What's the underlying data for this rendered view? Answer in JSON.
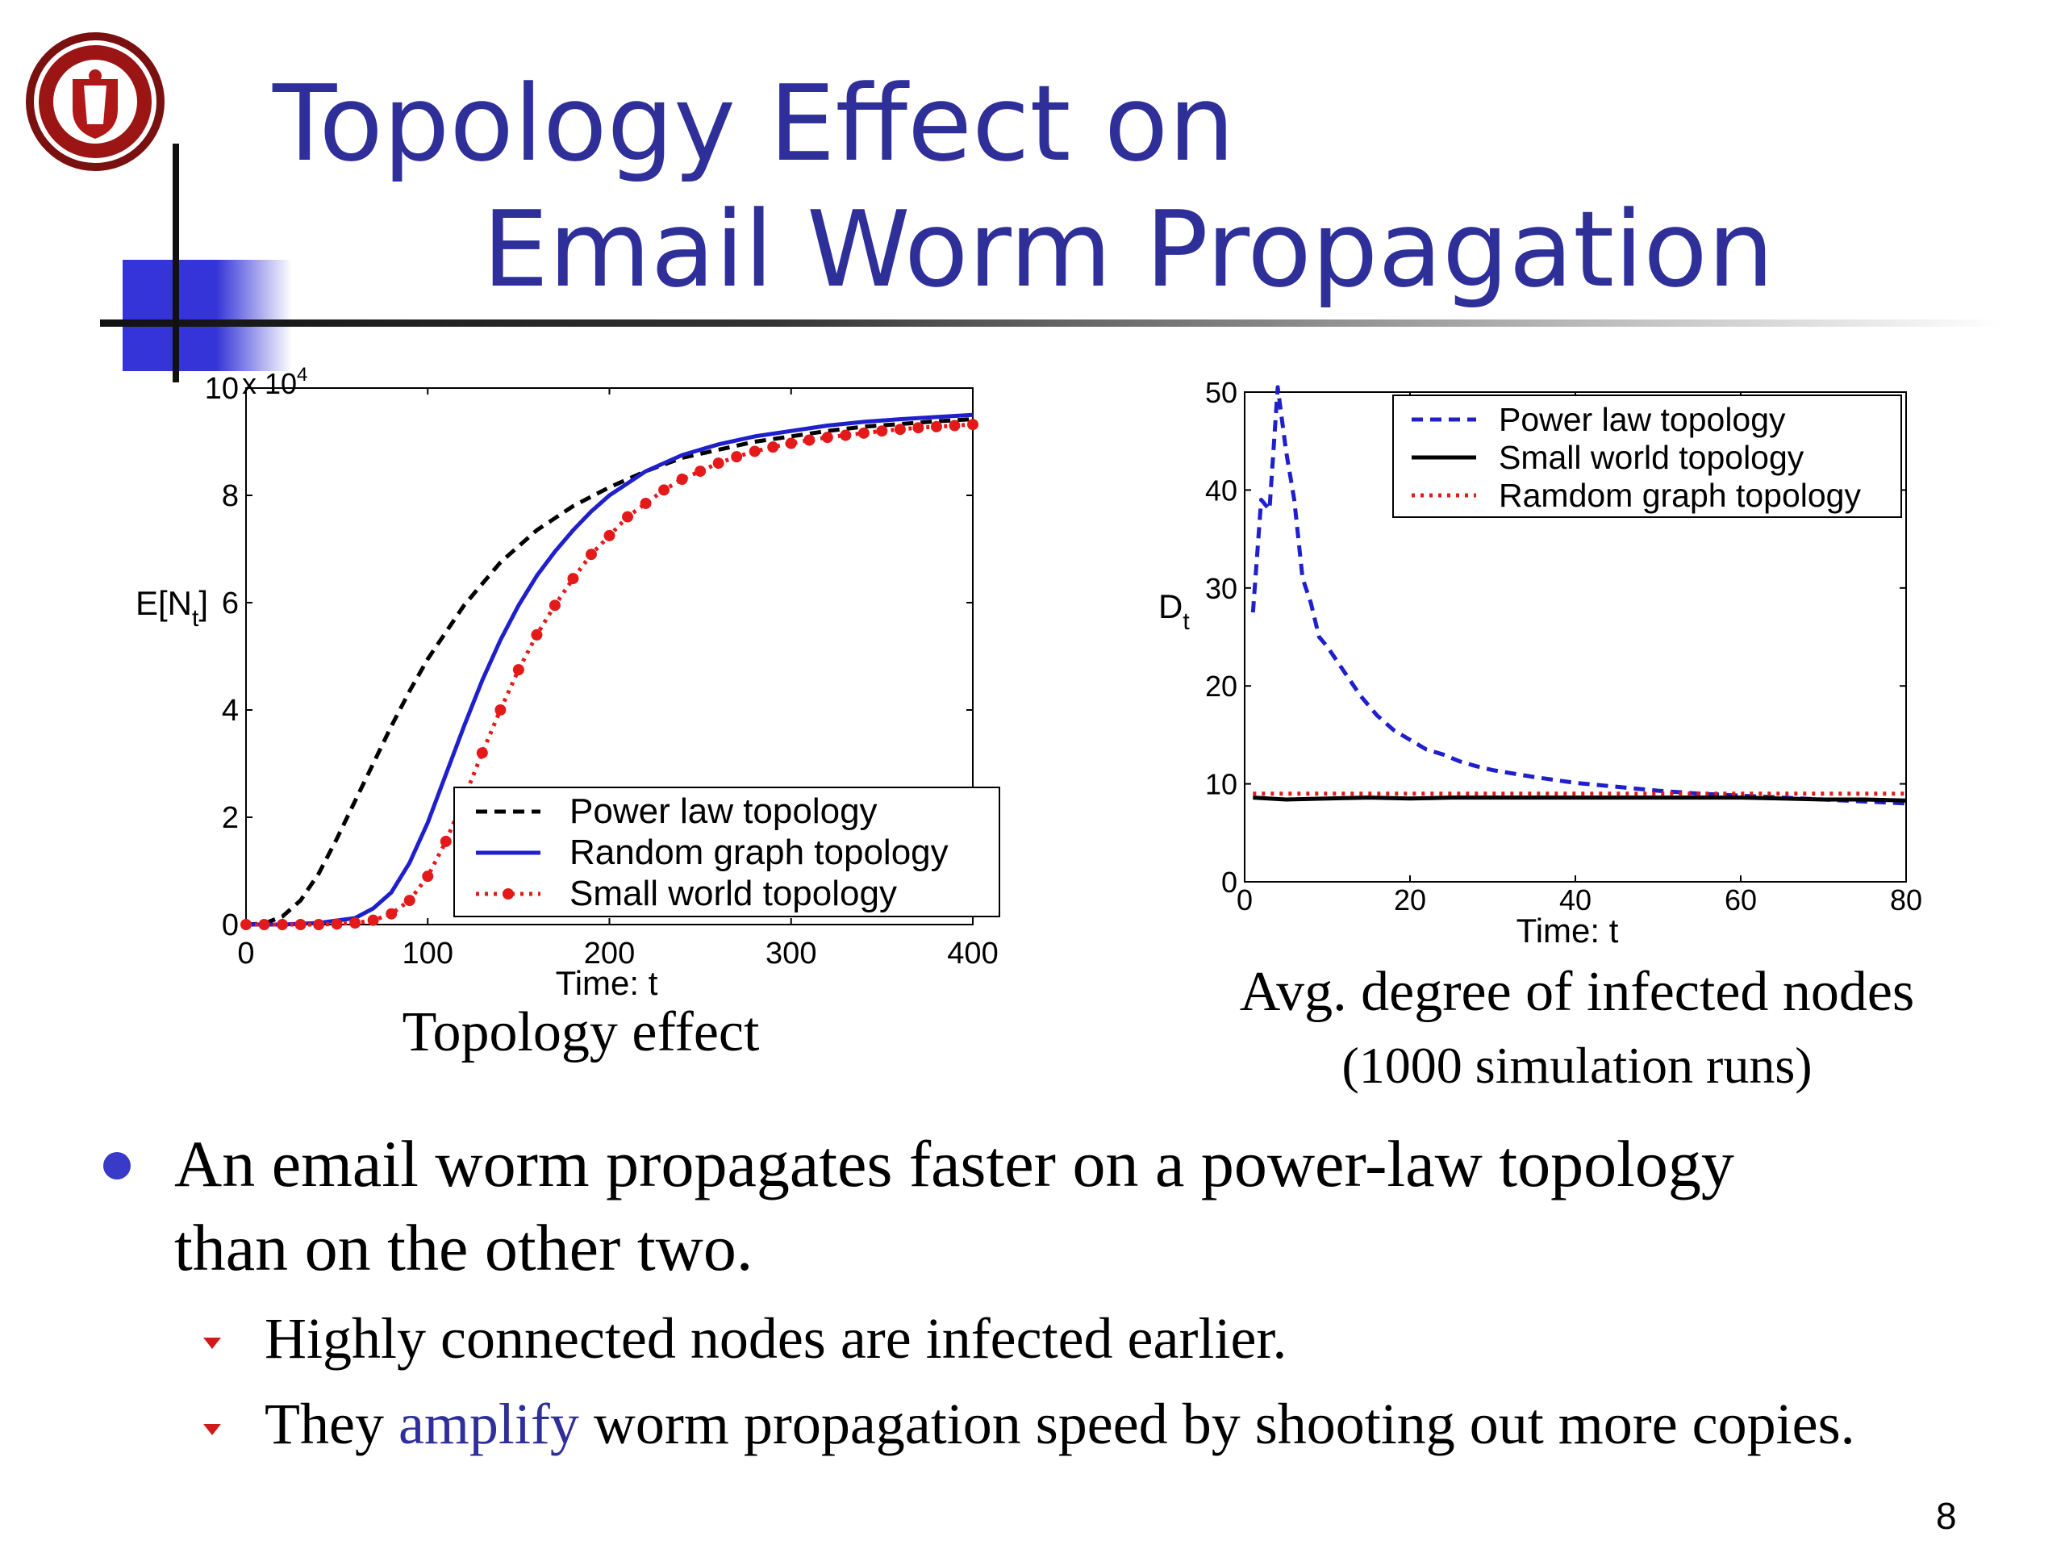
{
  "slide": {
    "title_line1": "Topology Effect on",
    "title_line2": "Email Worm Propagation",
    "page_number": "8",
    "colors": {
      "title": "#2f2f9a",
      "accent_block": "#3434d8",
      "bullet": "#3a3ac8",
      "sub_bullet": "#d01a1a"
    }
  },
  "captions": {
    "left": "Topology effect",
    "right": "Avg. degree of infected nodes",
    "right_sub": "(1000 simulation runs)"
  },
  "bullets": {
    "main_line1": "An email worm propagates faster on a power-law topology",
    "main_line2": "than on the other two.",
    "sub1": "Highly connected nodes are infected earlier.",
    "sub2_before": "They ",
    "sub2_accent": "amplify",
    "sub2_after": " worm propagation speed by shooting out more copies."
  },
  "chart_data": [
    {
      "type": "line",
      "title": "",
      "xlabel": "Time: t",
      "ylabel": "E[N",
      "ylabel_sub": "t",
      "ylabel_end": "]",
      "y_multiplier": "x 10",
      "y_multiplier_exp": "4",
      "xlim": [
        0,
        400
      ],
      "ylim": [
        0,
        10
      ],
      "xticks": [
        0,
        100,
        200,
        300,
        400
      ],
      "yticks": [
        0,
        2,
        4,
        6,
        8,
        10
      ],
      "grid": false,
      "legend_position": "lower-right",
      "series": [
        {
          "name": "Power law topology",
          "style": "dashed",
          "color": "#000000",
          "x": [
            0,
            10,
            20,
            30,
            40,
            50,
            60,
            70,
            80,
            90,
            100,
            120,
            140,
            160,
            180,
            200,
            220,
            240,
            260,
            280,
            300,
            320,
            340,
            360,
            380,
            400
          ],
          "y": [
            0,
            0.02,
            0.15,
            0.45,
            0.95,
            1.6,
            2.3,
            3.0,
            3.7,
            4.35,
            4.95,
            5.95,
            6.75,
            7.35,
            7.8,
            8.15,
            8.45,
            8.7,
            8.85,
            9.0,
            9.1,
            9.2,
            9.28,
            9.33,
            9.38,
            9.42
          ]
        },
        {
          "name": "Random graph topology",
          "style": "solid",
          "color": "#1f1fcc",
          "x": [
            0,
            20,
            40,
            60,
            70,
            80,
            90,
            100,
            110,
            120,
            130,
            140,
            150,
            160,
            170,
            180,
            190,
            200,
            220,
            240,
            260,
            280,
            300,
            320,
            340,
            360,
            380,
            400
          ],
          "y": [
            0,
            0,
            0.03,
            0.12,
            0.3,
            0.6,
            1.15,
            1.9,
            2.8,
            3.7,
            4.55,
            5.3,
            5.95,
            6.5,
            6.95,
            7.35,
            7.7,
            8.0,
            8.45,
            8.75,
            8.95,
            9.1,
            9.2,
            9.3,
            9.37,
            9.42,
            9.46,
            9.5
          ]
        },
        {
          "name": "Small world topology",
          "style": "dotted-markers",
          "color": "#e41a1a",
          "x": [
            0,
            10,
            20,
            30,
            40,
            50,
            60,
            70,
            80,
            90,
            100,
            110,
            120,
            130,
            140,
            150,
            160,
            170,
            180,
            190,
            200,
            210,
            220,
            230,
            240,
            250,
            260,
            270,
            280,
            290,
            300,
            310,
            320,
            330,
            340,
            350,
            360,
            370,
            380,
            390,
            400
          ],
          "y": [
            0,
            0,
            0,
            0,
            0,
            0.01,
            0.03,
            0.08,
            0.2,
            0.45,
            0.9,
            1.55,
            2.35,
            3.2,
            4.0,
            4.75,
            5.4,
            5.95,
            6.45,
            6.9,
            7.25,
            7.6,
            7.85,
            8.1,
            8.3,
            8.45,
            8.6,
            8.72,
            8.82,
            8.9,
            8.97,
            9.03,
            9.08,
            9.12,
            9.16,
            9.2,
            9.23,
            9.26,
            9.28,
            9.3,
            9.32
          ]
        }
      ]
    },
    {
      "type": "line",
      "title": "",
      "xlabel": "Time: t",
      "ylabel": "D",
      "ylabel_sub": "t",
      "xlim": [
        0,
        80
      ],
      "ylim": [
        0,
        50
      ],
      "xticks": [
        0,
        20,
        40,
        60,
        80
      ],
      "yticks": [
        0,
        10,
        20,
        30,
        40,
        50
      ],
      "grid": false,
      "legend_position": "top-right",
      "series": [
        {
          "name": "Power law topology",
          "style": "dashed",
          "color": "#1f1fcc",
          "x": [
            1,
            2,
            3,
            4,
            5,
            6,
            7,
            8,
            9,
            10,
            12,
            14,
            16,
            18,
            20,
            22,
            24,
            26,
            28,
            30,
            35,
            40,
            45,
            50,
            55,
            60,
            65,
            70,
            75,
            80
          ],
          "y": [
            27.5,
            39,
            38,
            50.5,
            44,
            39,
            31,
            28.5,
            25,
            24,
            21.5,
            19,
            17,
            15.5,
            14.5,
            13.5,
            13,
            12.3,
            11.8,
            11.4,
            10.7,
            10.1,
            9.7,
            9.3,
            9.0,
            8.8,
            8.6,
            8.4,
            8.2,
            8.0
          ]
        },
        {
          "name": "Small world topology",
          "style": "solid",
          "color": "#000000",
          "x": [
            1,
            5,
            10,
            15,
            20,
            25,
            30,
            35,
            40,
            45,
            50,
            55,
            60,
            65,
            70,
            75,
            80
          ],
          "y": [
            8.6,
            8.4,
            8.5,
            8.6,
            8.5,
            8.6,
            8.6,
            8.6,
            8.6,
            8.6,
            8.6,
            8.6,
            8.6,
            8.5,
            8.4,
            8.4,
            8.3
          ]
        },
        {
          "name": "Ramdom graph topology",
          "style": "dotted",
          "color": "#e41a1a",
          "x": [
            1,
            10,
            20,
            30,
            40,
            50,
            60,
            70,
            80
          ],
          "y": [
            9.0,
            9.0,
            9.0,
            9.0,
            9.0,
            9.0,
            9.0,
            9.0,
            9.0
          ]
        }
      ]
    }
  ]
}
